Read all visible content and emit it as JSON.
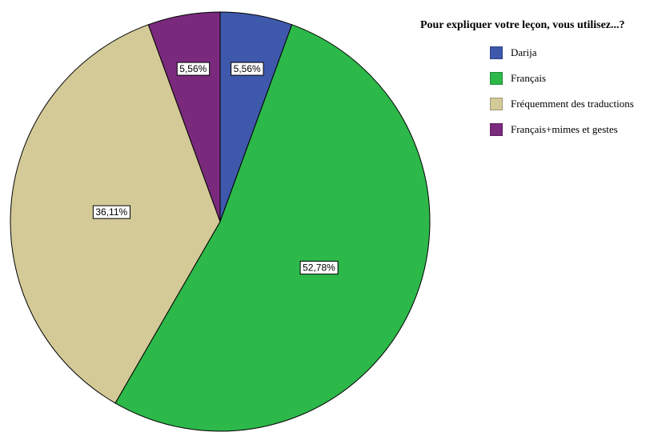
{
  "chart_data": {
    "type": "pie",
    "title": "Pour expliquer votre leçon, vous utilisez...?",
    "legend_position": "top-right",
    "slices": [
      {
        "label": "Darija",
        "value": 5.56,
        "display": "5,56%",
        "color": "#3e58ac"
      },
      {
        "label": "Français",
        "value": 52.78,
        "display": "52,78%",
        "color": "#2db84a"
      },
      {
        "label": "Fréquemment des traductions",
        "value": 36.11,
        "display": "36,11%",
        "color": "#d3ca98"
      },
      {
        "label": "Français+mimes et gestes",
        "value": 5.56,
        "display": "5,56%",
        "color": "#7a2a7d"
      }
    ]
  }
}
